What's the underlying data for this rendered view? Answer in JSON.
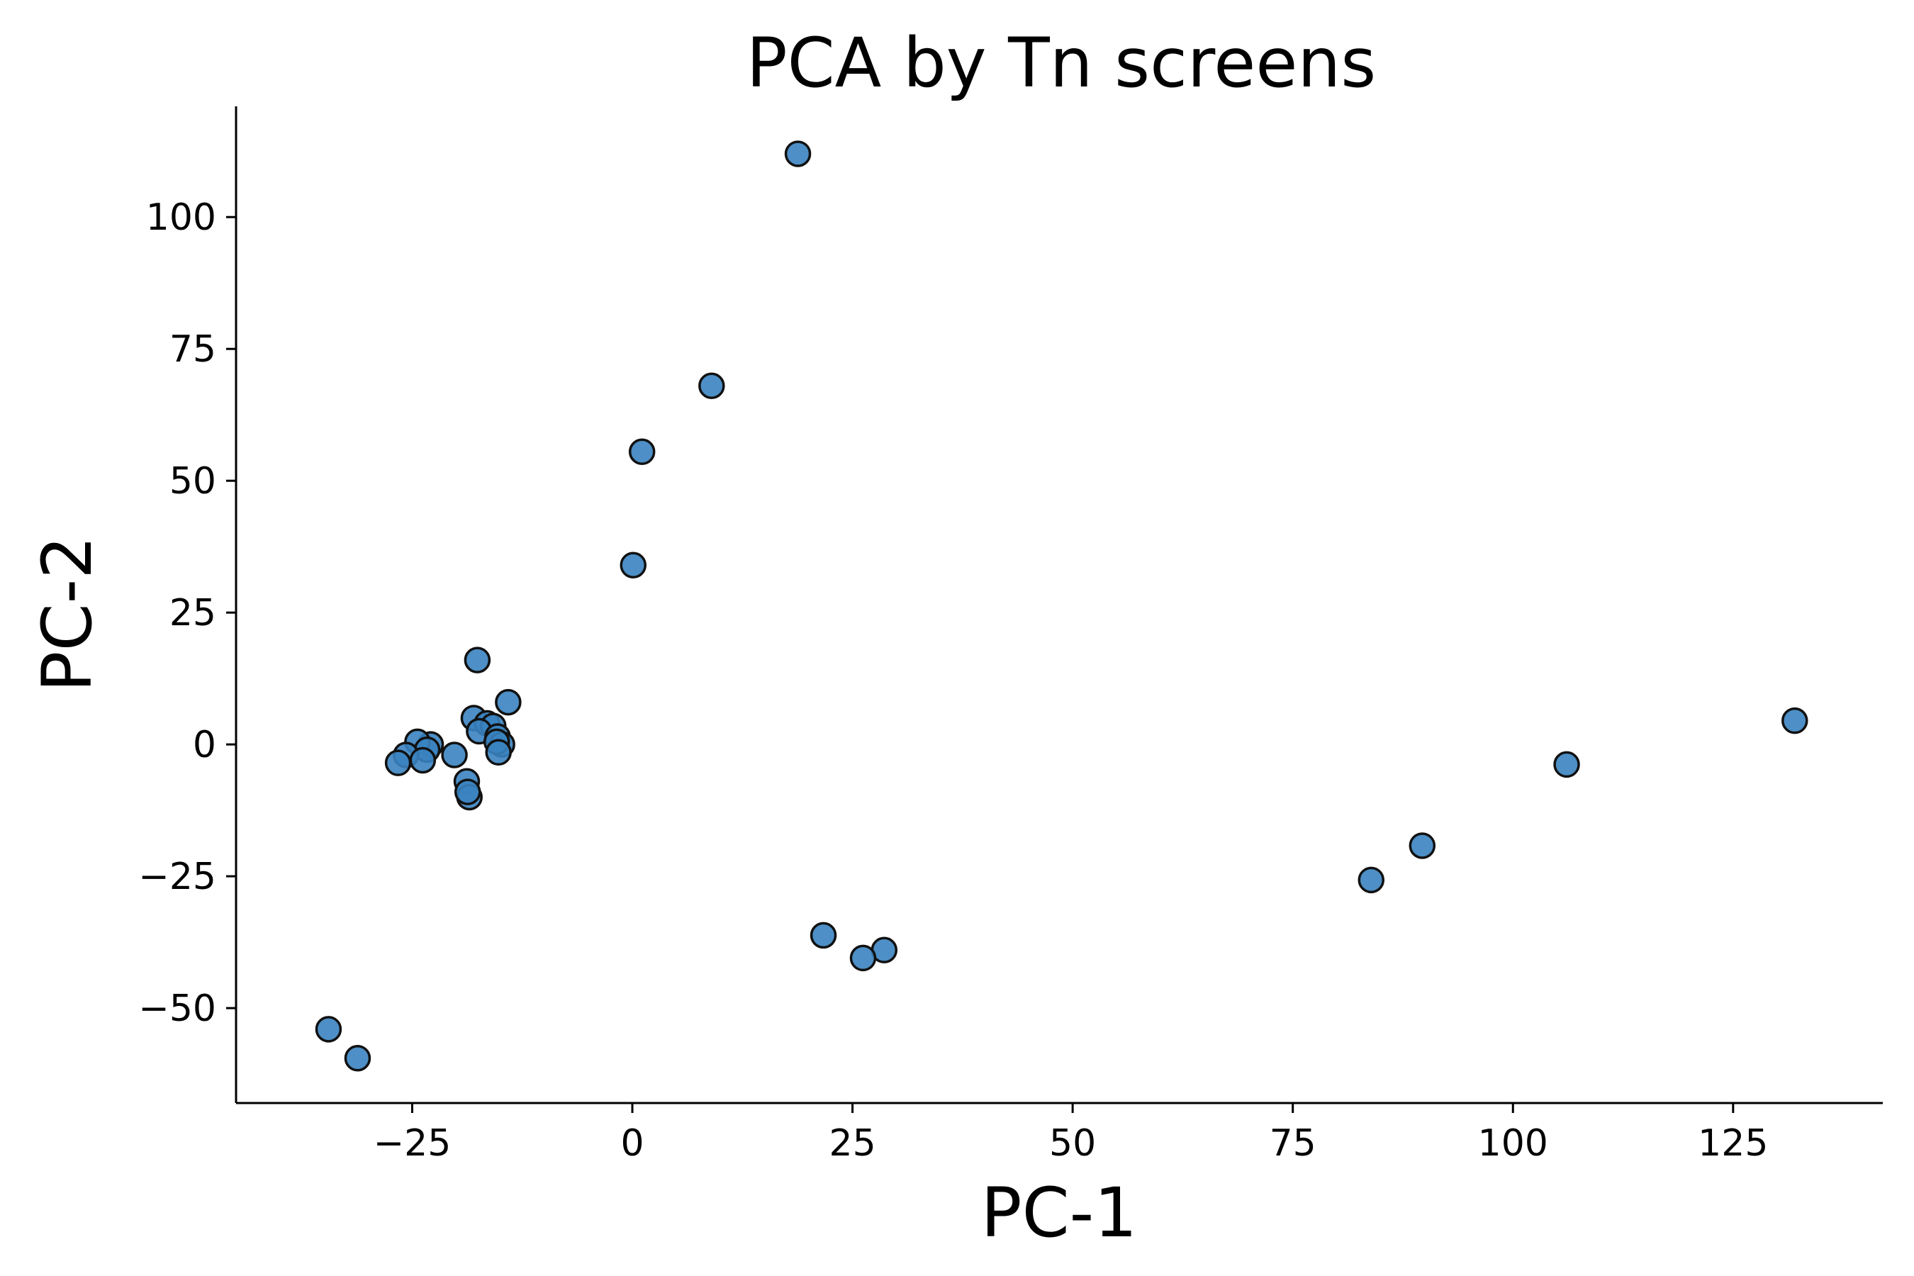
{
  "chart_data": {
    "type": "scatter",
    "title": "PCA by Tn screens",
    "xlabel": "PC-1",
    "ylabel": "PC-2",
    "xlim": [
      -45,
      142
    ],
    "ylim": [
      -68,
      121
    ],
    "xticks": [
      -25,
      0,
      25,
      50,
      75,
      100,
      125
    ],
    "yticks": [
      -50,
      -25,
      0,
      25,
      50,
      75,
      100
    ],
    "xtick_labels": [
      "−25",
      "0",
      "25",
      "50",
      "75",
      "100",
      "125"
    ],
    "ytick_labels": [
      "−50",
      "−25",
      "0",
      "25",
      "50",
      "75",
      "100"
    ],
    "grid": false,
    "marker_color": "#3a83c0",
    "marker_edge_color": "#111111",
    "points": [
      {
        "x": 18.8,
        "y": 112.0
      },
      {
        "x": 9.0,
        "y": 68.0
      },
      {
        "x": 1.1,
        "y": 55.5
      },
      {
        "x": 0.1,
        "y": 34.0
      },
      {
        "x": -17.6,
        "y": 16.0
      },
      {
        "x": -14.1,
        "y": 8.0
      },
      {
        "x": -18.0,
        "y": 5.0
      },
      {
        "x": -16.5,
        "y": 4.0
      },
      {
        "x": -15.8,
        "y": 3.5
      },
      {
        "x": -17.4,
        "y": 2.5
      },
      {
        "x": -15.3,
        "y": 1.5
      },
      {
        "x": -14.8,
        "y": 0.0
      },
      {
        "x": -15.4,
        "y": 0.5
      },
      {
        "x": -15.2,
        "y": -1.5
      },
      {
        "x": -22.9,
        "y": 0.0
      },
      {
        "x": -24.4,
        "y": 0.5
      },
      {
        "x": -23.3,
        "y": -1.0
      },
      {
        "x": -25.7,
        "y": -2.0
      },
      {
        "x": -23.8,
        "y": -3.0
      },
      {
        "x": -26.6,
        "y": -3.5
      },
      {
        "x": -20.2,
        "y": -2.0
      },
      {
        "x": -18.8,
        "y": -7.0
      },
      {
        "x": -18.5,
        "y": -10.0
      },
      {
        "x": -18.7,
        "y": -9.0
      },
      {
        "x": 132.0,
        "y": 4.5
      },
      {
        "x": 106.1,
        "y": -3.8
      },
      {
        "x": 89.7,
        "y": -19.2
      },
      {
        "x": 83.9,
        "y": -25.7
      },
      {
        "x": 21.7,
        "y": -36.2
      },
      {
        "x": 28.6,
        "y": -39.0
      },
      {
        "x": 26.2,
        "y": -40.5
      },
      {
        "x": -34.5,
        "y": -54.0
      },
      {
        "x": -31.2,
        "y": -59.5
      }
    ]
  }
}
